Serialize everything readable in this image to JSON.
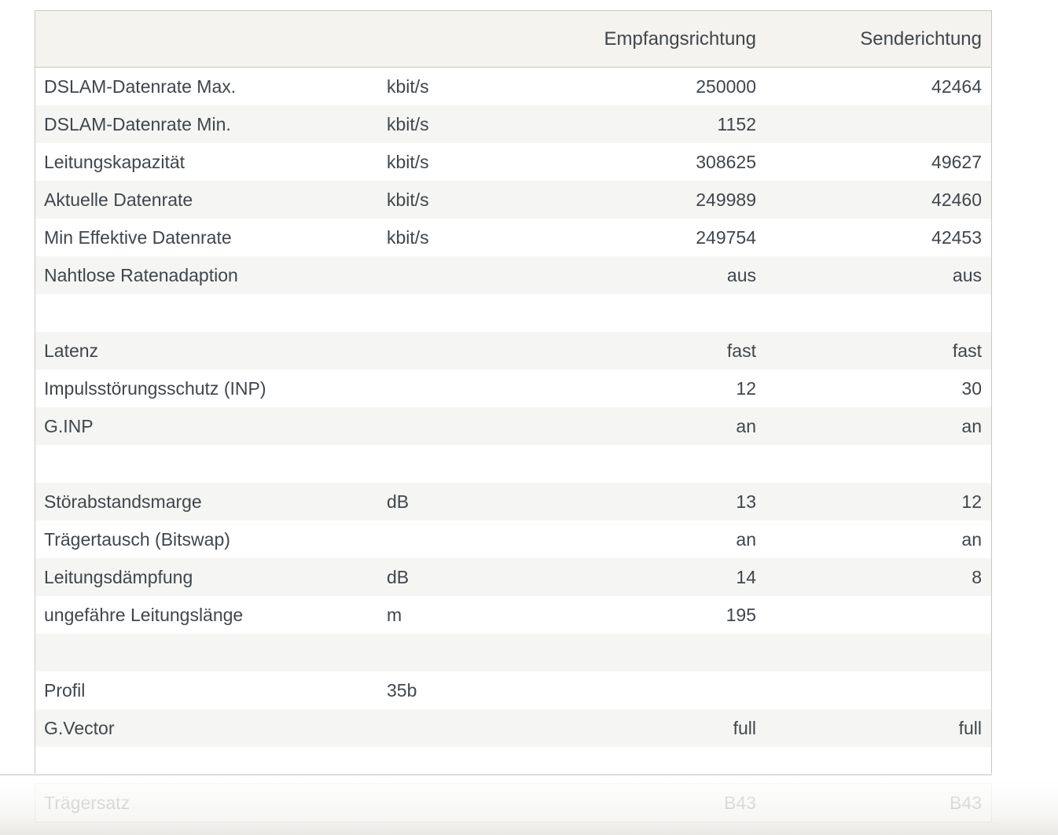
{
  "colors": {
    "text": "#40464c",
    "border": "#c9c7c2",
    "header_bg": "#f4f3ef",
    "row_alt_bg": "#f5f5f3",
    "faded_text": "#c8c8c8"
  },
  "header": {
    "rx": "Empfangsrichtung",
    "tx": "Senderichtung"
  },
  "rows": [
    {
      "type": "data",
      "label": "DSLAM-Datenrate Max.",
      "unit": "kbit/s",
      "rx": "250000",
      "tx": "42464"
    },
    {
      "type": "data",
      "label": "DSLAM-Datenrate Min.",
      "unit": "kbit/s",
      "rx": "1152",
      "tx": ""
    },
    {
      "type": "data",
      "label": "Leitungskapazität",
      "unit": "kbit/s",
      "rx": "308625",
      "tx": "49627"
    },
    {
      "type": "data",
      "label": "Aktuelle Datenrate",
      "unit": "kbit/s",
      "rx": "249989",
      "tx": "42460"
    },
    {
      "type": "data",
      "label": "Min Effektive Datenrate",
      "unit": "kbit/s",
      "rx": "249754",
      "tx": "42453"
    },
    {
      "type": "data",
      "label": "Nahtlose Ratenadaption",
      "unit": "",
      "rx": "aus",
      "tx": "aus"
    },
    {
      "type": "spacer",
      "label": "",
      "unit": "",
      "rx": "",
      "tx": ""
    },
    {
      "type": "data",
      "label": "Latenz",
      "unit": "",
      "rx": "fast",
      "tx": "fast"
    },
    {
      "type": "data",
      "label": "Impulsstörungsschutz (INP)",
      "unit": "",
      "rx": "12",
      "tx": "30"
    },
    {
      "type": "data",
      "label": "G.INP",
      "unit": "",
      "rx": "an",
      "tx": "an"
    },
    {
      "type": "spacer",
      "label": "",
      "unit": "",
      "rx": "",
      "tx": ""
    },
    {
      "type": "data",
      "label": "Störabstandsmarge",
      "unit": "dB",
      "rx": "13",
      "tx": "12"
    },
    {
      "type": "data",
      "label": "Trägertausch (Bitswap)",
      "unit": "",
      "rx": "an",
      "tx": "an"
    },
    {
      "type": "data",
      "label": "Leitungsdämpfung",
      "unit": "dB",
      "rx": "14",
      "tx": "8"
    },
    {
      "type": "data",
      "label": "ungefähre Leitungslänge",
      "unit": "m",
      "rx": "195",
      "tx": ""
    },
    {
      "type": "spacer",
      "label": "",
      "unit": "",
      "rx": "",
      "tx": ""
    },
    {
      "type": "data",
      "label": "Profil",
      "unit": "35b",
      "rx": "",
      "tx": ""
    },
    {
      "type": "data",
      "label": "G.Vector",
      "unit": "",
      "rx": "full",
      "tx": "full"
    },
    {
      "type": "spacer",
      "partial": true,
      "label": "",
      "unit": "",
      "rx": "",
      "tx": ""
    }
  ],
  "faded_row": {
    "label": "Trägersatz",
    "unit": "",
    "rx": "B43",
    "tx": "B43"
  }
}
